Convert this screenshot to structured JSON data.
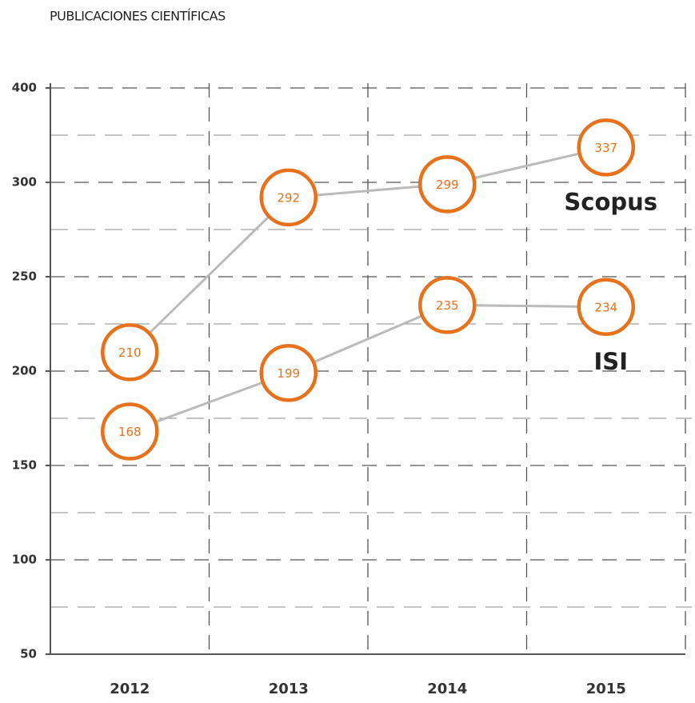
{
  "chart_data": {
    "type": "line",
    "title": "PUBLICACIONES CIENTÍFICAS",
    "categories": [
      "2012",
      "2013",
      "2014",
      "2015"
    ],
    "series": [
      {
        "name": "Scopus",
        "color": "#e8711c",
        "values": [
          210,
          292,
          299,
          337
        ]
      },
      {
        "name": "ISI",
        "color": "#e8711c",
        "values": [
          168,
          199,
          235,
          234
        ]
      }
    ],
    "ylim": [
      50,
      400
    ],
    "yticks": [
      50,
      100,
      150,
      200,
      250,
      300,
      400
    ],
    "grid": true
  }
}
